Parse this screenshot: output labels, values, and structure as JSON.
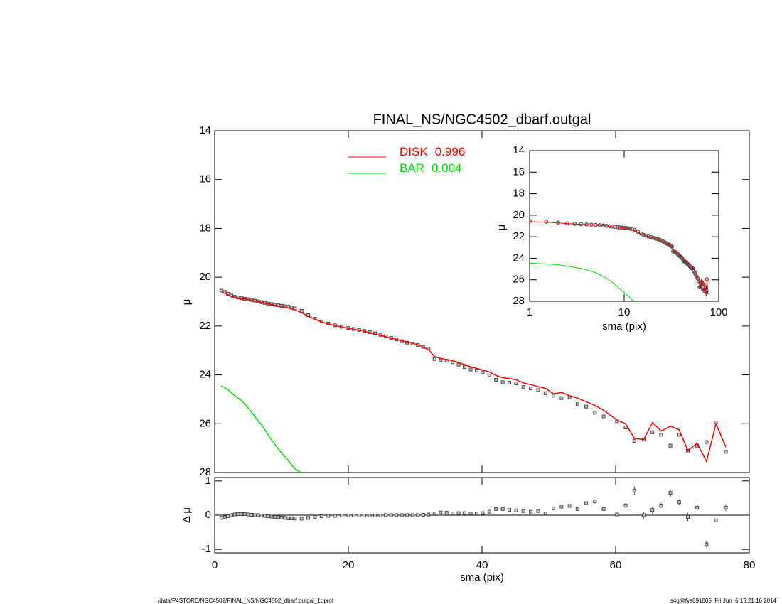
{
  "chart_data": [
    {
      "type": "profile",
      "title": "FINAL_NS/NGC4502_dbarf.outgal",
      "ylabel": "μ",
      "xlim": [
        0,
        80
      ],
      "ylim": [
        14,
        28
      ],
      "y_inverted": true,
      "yticks": [
        14,
        16,
        18,
        20,
        22,
        24,
        26,
        28
      ],
      "x": [
        1,
        1.5,
        2,
        2.5,
        3,
        3.5,
        4,
        4.5,
        5,
        5.5,
        6,
        6.5,
        7,
        7.5,
        8,
        8.5,
        9,
        9.5,
        10,
        10.5,
        11,
        11.5,
        12,
        13,
        14,
        15,
        16,
        17,
        18,
        19,
        20,
        20.8,
        21.6,
        22.4,
        23.2,
        24,
        24.8,
        25.6,
        26.4,
        27.2,
        28,
        28.8,
        29.6,
        30.4,
        31.2,
        32,
        32.9,
        33.8,
        34.7,
        35.6,
        36.5,
        37.4,
        38.3,
        39.2,
        40.1,
        41.1,
        42.1,
        43.1,
        44.1,
        45.1,
        46.2,
        47.3,
        48.4,
        49.5,
        50.7,
        51.9,
        53.1,
        54.3,
        55.6,
        56.9,
        58.2,
        60.2,
        61.5,
        62.8,
        64.2,
        65.5,
        66.8,
        68.2,
        69.5,
        70.8,
        72.2,
        73.6,
        75,
        76.5
      ],
      "observed": [
        20.55,
        20.6,
        20.68,
        20.75,
        20.8,
        20.83,
        20.86,
        20.88,
        20.9,
        20.93,
        20.96,
        20.99,
        21.02,
        21.05,
        21.08,
        21.1,
        21.13,
        21.15,
        21.17,
        21.19,
        21.21,
        21.24,
        21.28,
        21.38,
        21.55,
        21.7,
        21.82,
        21.9,
        21.97,
        22.03,
        22.08,
        22.12,
        22.16,
        22.2,
        22.25,
        22.3,
        22.36,
        22.42,
        22.48,
        22.55,
        22.62,
        22.68,
        22.72,
        22.78,
        22.85,
        22.92,
        23.35,
        23.4,
        23.42,
        23.48,
        23.58,
        23.68,
        23.78,
        23.82,
        23.9,
        24.02,
        24.2,
        24.3,
        24.32,
        24.35,
        24.5,
        24.55,
        24.62,
        24.75,
        24.85,
        24.95,
        24.92,
        25.2,
        25.3,
        25.55,
        25.7,
        25.9,
        26.15,
        26.7,
        26.65,
        26.35,
        26.45,
        26.9,
        26.45,
        27.1,
        26.9,
        26.75,
        25.95,
        27.15
      ],
      "observed_color": "#444444",
      "legend": "upper center",
      "series": [
        {
          "name": "DISK",
          "fraction": 0.996,
          "color": "#ff0000",
          "values": [
            20.6,
            20.65,
            20.72,
            20.78,
            20.82,
            20.85,
            20.87,
            20.89,
            20.91,
            20.94,
            20.97,
            21,
            21.03,
            21.06,
            21.09,
            21.12,
            21.15,
            21.18,
            21.2,
            21.23,
            21.26,
            21.3,
            21.34,
            21.45,
            21.6,
            21.72,
            21.83,
            21.92,
            21.98,
            22.04,
            22.09,
            22.13,
            22.17,
            22.21,
            22.27,
            22.33,
            22.38,
            22.44,
            22.5,
            22.55,
            22.6,
            22.65,
            22.7,
            22.77,
            22.86,
            22.97,
            23.25,
            23.32,
            23.37,
            23.42,
            23.5,
            23.58,
            23.67,
            23.73,
            23.8,
            23.88,
            24.02,
            24.12,
            24.15,
            24.2,
            24.33,
            24.4,
            24.48,
            24.55,
            24.78,
            24.72,
            24.85,
            24.95,
            25.1,
            25.25,
            25.45,
            25.85,
            26,
            26.6,
            26.65,
            25.95,
            26.3,
            26.1,
            26.25,
            27.1,
            26.8,
            27.55,
            26,
            26.95
          ]
        },
        {
          "name": "BAR",
          "fraction": 0.004,
          "color": "#00e000",
          "x": [
            1,
            2,
            3,
            4,
            5,
            6,
            7,
            8,
            9,
            10,
            11,
            12,
            12.9
          ],
          "values": [
            24.45,
            24.6,
            24.85,
            25.05,
            25.35,
            25.7,
            26.05,
            26.45,
            26.85,
            27.2,
            27.5,
            27.85,
            28
          ]
        }
      ]
    },
    {
      "type": "residual",
      "ylabel": "Δ μ",
      "xlabel": "sma (pix)",
      "xlim": [
        0,
        80
      ],
      "xticks": [
        0,
        20,
        40,
        60,
        80
      ],
      "ylim": [
        -1.1,
        1.1
      ],
      "yticks": [
        -1,
        0,
        1
      ],
      "zero_line": true,
      "values": [
        -0.08,
        -0.06,
        -0.03,
        0,
        0.02,
        0.03,
        0.03,
        0.03,
        0.02,
        0.01,
        0,
        0,
        -0.01,
        -0.02,
        -0.03,
        -0.04,
        -0.05,
        -0.06,
        -0.07,
        -0.08,
        -0.09,
        -0.09,
        -0.1,
        -0.1,
        -0.08,
        -0.05,
        -0.03,
        -0.02,
        -0.02,
        -0.01,
        -0.01,
        -0.01,
        -0.01,
        -0.01,
        -0.01,
        -0.01,
        -0.01,
        0,
        0,
        0,
        0,
        0,
        0,
        0,
        0.01,
        0.02,
        0.05,
        0.08,
        0.07,
        0.05,
        0.06,
        0.06,
        0.05,
        0.05,
        0.06,
        0.1,
        0.18,
        0.18,
        0.15,
        0.14,
        0.12,
        0.1,
        0.12,
        0.05,
        0.2,
        0.25,
        0.27,
        0.18,
        0.35,
        0.4,
        0.18,
        0.02,
        0.28,
        0.72,
        0,
        0.15,
        0.28,
        0.65,
        0.38,
        -0.05,
        0.22,
        -0.85,
        -0.15,
        0.22
      ],
      "errors": [
        0.01,
        0.01,
        0.01,
        0.01,
        0.01,
        0.01,
        0.01,
        0.01,
        0.01,
        0.01,
        0.01,
        0.01,
        0.01,
        0.01,
        0.01,
        0.01,
        0.01,
        0.01,
        0.01,
        0.01,
        0.01,
        0.01,
        0.01,
        0.01,
        0.01,
        0.01,
        0.01,
        0.01,
        0.01,
        0.01,
        0.01,
        0.01,
        0.01,
        0.01,
        0.01,
        0.01,
        0.01,
        0.01,
        0.01,
        0.01,
        0.01,
        0.01,
        0.01,
        0.01,
        0.01,
        0.01,
        0.02,
        0.02,
        0.02,
        0.02,
        0.02,
        0.02,
        0.02,
        0.02,
        0.02,
        0.02,
        0.02,
        0.02,
        0.02,
        0.02,
        0.03,
        0.03,
        0.03,
        0.03,
        0.04,
        0.04,
        0.04,
        0.04,
        0.05,
        0.05,
        0.05,
        0.05,
        0.07,
        0.12,
        0.1,
        0.1,
        0.08,
        0.12,
        0.08,
        0.12,
        0.1,
        0.1,
        0.05,
        0.1
      ]
    },
    {
      "type": "inset",
      "xlabel": "sma (pix)",
      "ylabel": "μ",
      "xlim": [
        1,
        100
      ],
      "xticks": [
        1,
        10,
        100
      ],
      "log_x": true,
      "ylim": [
        14,
        28
      ],
      "y_inverted": true,
      "yticks": [
        14,
        16,
        18,
        20,
        22,
        24,
        26,
        28
      ]
    }
  ],
  "footer": {
    "left": "/data/P4STORE/NGC4502/FINAL_NS/NGC4502_dbarf.outgal_1dprof",
    "right": "s4g@fys091005  Fri Jun  6 15:21:16 2014"
  }
}
